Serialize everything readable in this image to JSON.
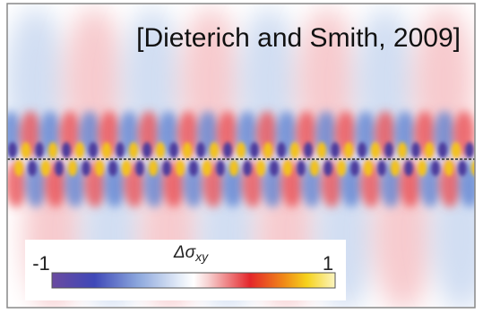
{
  "citation": "[Dieterich and Smith, 2009]",
  "colorbar": {
    "label": "Δσ",
    "label_subscript": "xy",
    "min": -1,
    "max": 1
  }
}
